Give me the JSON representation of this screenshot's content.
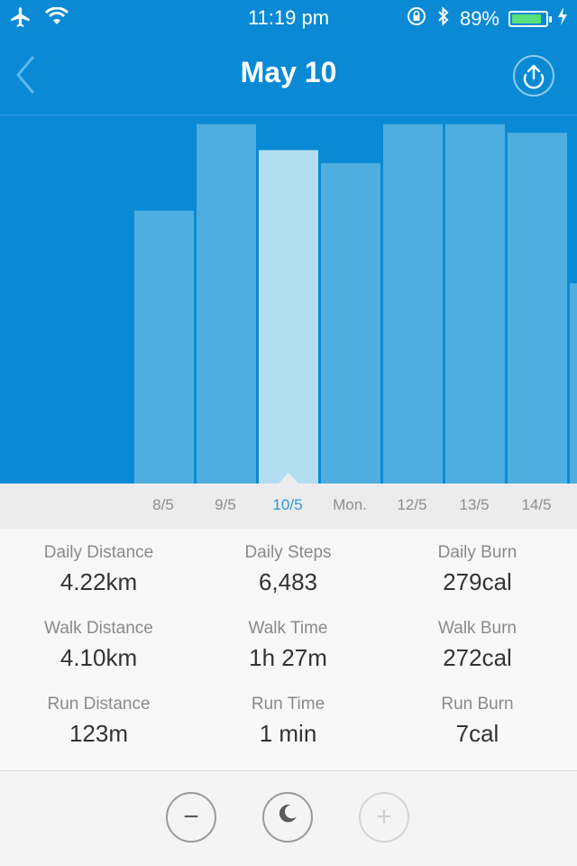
{
  "status": {
    "time": "11:19 pm",
    "battery_text": "89%",
    "battery_level": 0.89
  },
  "header": {
    "title": "May 10"
  },
  "chart_data": {
    "type": "bar",
    "categories": [
      "8/5",
      "9/5",
      "10/5",
      "Mon.",
      "12/5",
      "13/5",
      "14/5"
    ],
    "values": [
      6.3,
      8.3,
      7.7,
      7.4,
      8.3,
      8.3,
      8.1
    ],
    "selected_index": 2,
    "ylim": [
      0,
      10
    ],
    "colors": {
      "background": "#0a8ad5",
      "bar": "#4eaee0",
      "bar_selected": "#b3def2"
    }
  },
  "stats": [
    [
      {
        "label": "Daily Distance",
        "value": "4.22km"
      },
      {
        "label": "Daily Steps",
        "value": "6,483"
      },
      {
        "label": "Daily Burn",
        "value": "279cal"
      }
    ],
    [
      {
        "label": "Walk Distance",
        "value": "4.10km"
      },
      {
        "label": "Walk Time",
        "value": "1h 27m"
      },
      {
        "label": "Walk Burn",
        "value": "272cal"
      }
    ],
    [
      {
        "label": "Run Distance",
        "value": "123m"
      },
      {
        "label": "Run Time",
        "value": "1 min"
      },
      {
        "label": "Run Burn",
        "value": "7cal"
      }
    ]
  ],
  "controls": [
    {
      "icon": "minus-icon",
      "glyph": "−"
    },
    {
      "icon": "moon-icon",
      "glyph": "☾"
    },
    {
      "icon": "plus-icon",
      "glyph": "+"
    }
  ]
}
